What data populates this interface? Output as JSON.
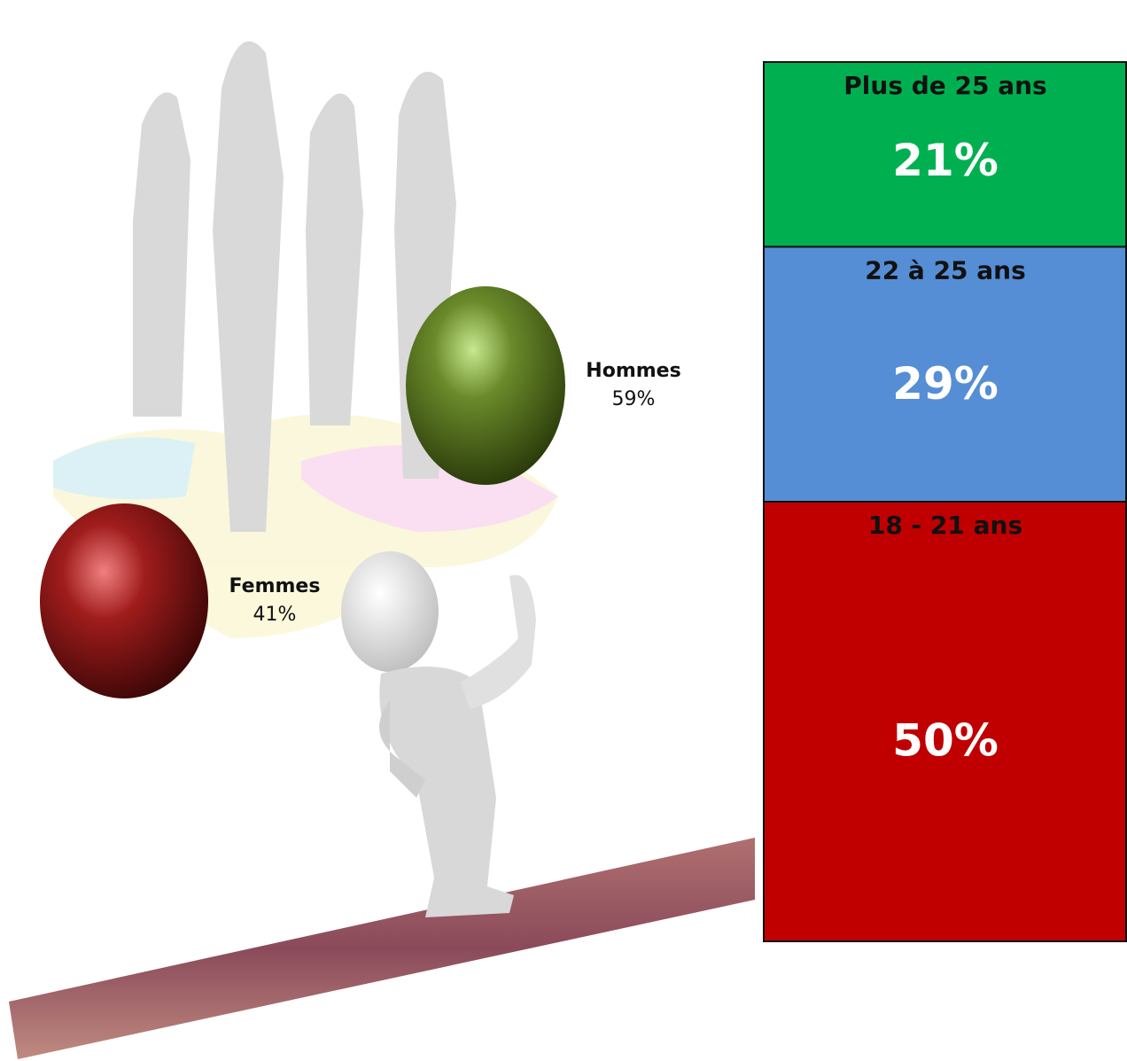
{
  "chart_data": [
    {
      "type": "stacked_bar",
      "ylim": [
        0,
        100
      ],
      "series": [
        {
          "name": "18 - 21 ans",
          "color": "#c00000",
          "values": [
            50
          ],
          "value_labels": [
            "50%"
          ]
        },
        {
          "name": "22 à 25 ans",
          "color": "#558ed5",
          "values": [
            29
          ],
          "value_labels": [
            "29%"
          ]
        },
        {
          "name": "Plus de 25 ans",
          "color": "#00b050",
          "values": [
            21
          ],
          "value_labels": [
            "21%"
          ]
        }
      ]
    },
    {
      "type": "spheres",
      "categories": [
        "Femmes",
        "Hommes"
      ],
      "values": [
        41,
        59
      ],
      "value_labels": [
        "41%",
        "59%"
      ],
      "colors": [
        "#a01c1c",
        "#6a8a2a"
      ]
    }
  ]
}
